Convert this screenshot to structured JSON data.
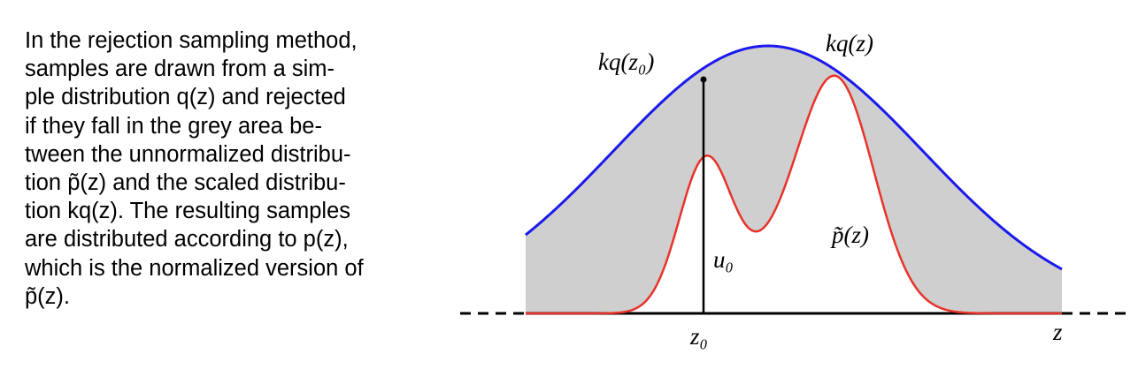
{
  "caption": {
    "lines": [
      "In the rejection sampling method,",
      "samples are drawn from a sim-",
      "ple distribution q(z) and rejected",
      "if they fall in the grey area be-",
      "tween the unnormalized distribu-",
      "tion p̃(z) and the scaled distribu-",
      "tion kq(z). The resulting samples",
      "are distributed according to p(z),",
      "which is the normalized version of",
      "p̃(z)."
    ]
  },
  "diagram": {
    "labels": {
      "kq_z0": "kq(z₀)",
      "kq_z": "kq(z)",
      "p_tilde": "p̃(z)",
      "u0": "u₀",
      "z0": "z₀",
      "z": "z"
    },
    "colors": {
      "envelope": "#1a1aee",
      "target": "#e8332a",
      "shade": "#cfcfcf",
      "axis": "#000000"
    }
  }
}
